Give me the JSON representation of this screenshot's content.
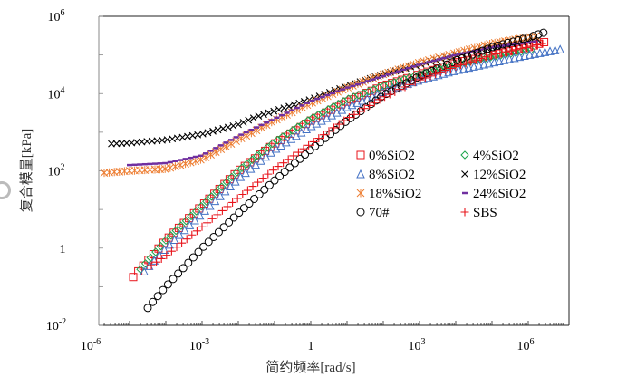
{
  "chart_data": {
    "type": "scatter",
    "title": "",
    "xlabel": "简约频率[rad/s]",
    "ylabel": "复合模量[kPa]",
    "xscale": "log",
    "yscale": "log",
    "xlim": [
      1e-06,
      10000000.0
    ],
    "ylim": [
      0.01,
      1000000.0
    ],
    "x_ticks": [
      {
        "base": "10",
        "exp": "-6"
      },
      {
        "base": "10",
        "exp": "-3"
      },
      {
        "base": "1",
        "exp": ""
      },
      {
        "base": "10",
        "exp": "3"
      },
      {
        "base": "10",
        "exp": "6"
      }
    ],
    "y_ticks": [
      {
        "base": "10",
        "exp": "-2"
      },
      {
        "base": "1",
        "exp": ""
      },
      {
        "base": "10",
        "exp": "2"
      },
      {
        "base": "10",
        "exp": "4"
      },
      {
        "base": "10",
        "exp": "6"
      }
    ],
    "grid": false,
    "legend_position": "center-right",
    "series": [
      {
        "name": "0%SiO2",
        "marker": "square",
        "color": "#e8141b",
        "log_x": [
          -4.9,
          -4,
          -3,
          -2,
          -1,
          0,
          1,
          2,
          3,
          4,
          5,
          6,
          6.5
        ],
        "log_y": [
          -0.75,
          0.2,
          1.1,
          2.0,
          2.7,
          3.3,
          3.8,
          4.2,
          4.5,
          4.8,
          5.0,
          5.2,
          5.35
        ]
      },
      {
        "name": "4%SiO2",
        "marker": "diamond",
        "color": "#1aa34a",
        "log_x": [
          -4.7,
          -4,
          -3,
          -2,
          -1,
          0,
          1,
          2,
          3,
          4,
          5,
          6.2
        ],
        "log_y": [
          -0.55,
          0.2,
          1.1,
          2.0,
          2.75,
          3.35,
          3.85,
          4.2,
          4.5,
          4.75,
          4.95,
          5.15
        ]
      },
      {
        "name": "8%SiO2",
        "marker": "triangle",
        "color": "#4472c4",
        "log_x": [
          -4.6,
          -4,
          -3,
          -2,
          -1,
          0,
          1,
          2,
          3,
          4,
          5,
          6,
          6.9
        ],
        "log_y": [
          -0.6,
          0.0,
          0.9,
          1.8,
          2.55,
          3.15,
          3.65,
          4.05,
          4.35,
          4.6,
          4.8,
          5.0,
          5.15
        ]
      },
      {
        "name": "12%SiO2",
        "marker": "x",
        "color": "#000000",
        "log_x": [
          -5.5,
          -5,
          -4,
          -3,
          -2,
          -1.5,
          -1,
          0,
          1,
          2,
          3,
          4,
          5,
          6.3
        ],
        "log_y": [
          2.7,
          2.72,
          2.8,
          2.95,
          3.2,
          3.4,
          3.55,
          3.85,
          4.2,
          4.5,
          4.75,
          5.0,
          5.2,
          5.4
        ]
      },
      {
        "name": "18%SiO2",
        "marker": "asterisk",
        "color": "#ed7d31",
        "log_x": [
          -5.7,
          -5,
          -4,
          -3,
          -2,
          -1,
          0,
          1,
          2,
          3,
          4,
          5,
          6.3
        ],
        "log_y": [
          1.95,
          2.0,
          2.05,
          2.3,
          2.8,
          3.3,
          3.75,
          4.15,
          4.5,
          4.8,
          5.05,
          5.3,
          5.5
        ]
      },
      {
        "name": "24%SiO2",
        "marker": "dash",
        "color": "#7030a0",
        "log_x": [
          -5.0,
          -4,
          -3,
          -2,
          -1,
          0,
          1,
          2,
          3,
          4,
          5,
          6.2
        ],
        "log_y": [
          2.15,
          2.2,
          2.4,
          2.9,
          3.35,
          3.8,
          4.15,
          4.45,
          4.75,
          5.0,
          5.2,
          5.35
        ]
      },
      {
        "name": "70#",
        "marker": "circle",
        "color": "#000000",
        "log_x": [
          -4.5,
          -4,
          -3,
          -2,
          -1,
          0,
          1,
          2,
          3,
          4,
          5,
          6,
          6.5
        ],
        "log_y": [
          -1.55,
          -1.0,
          0.0,
          0.9,
          1.75,
          2.55,
          3.3,
          3.95,
          4.45,
          4.85,
          5.2,
          5.45,
          5.6
        ]
      },
      {
        "name": "SBS",
        "marker": "plus",
        "color": "#e8141b",
        "log_x": [
          -4.4,
          -4,
          -3,
          -2,
          -1,
          0,
          1,
          2,
          3,
          4,
          5,
          6,
          6.4
        ],
        "log_y": [
          -0.45,
          -0.2,
          0.55,
          1.3,
          2.05,
          2.7,
          3.35,
          3.9,
          4.35,
          4.7,
          5.0,
          5.2,
          5.3
        ]
      }
    ]
  }
}
